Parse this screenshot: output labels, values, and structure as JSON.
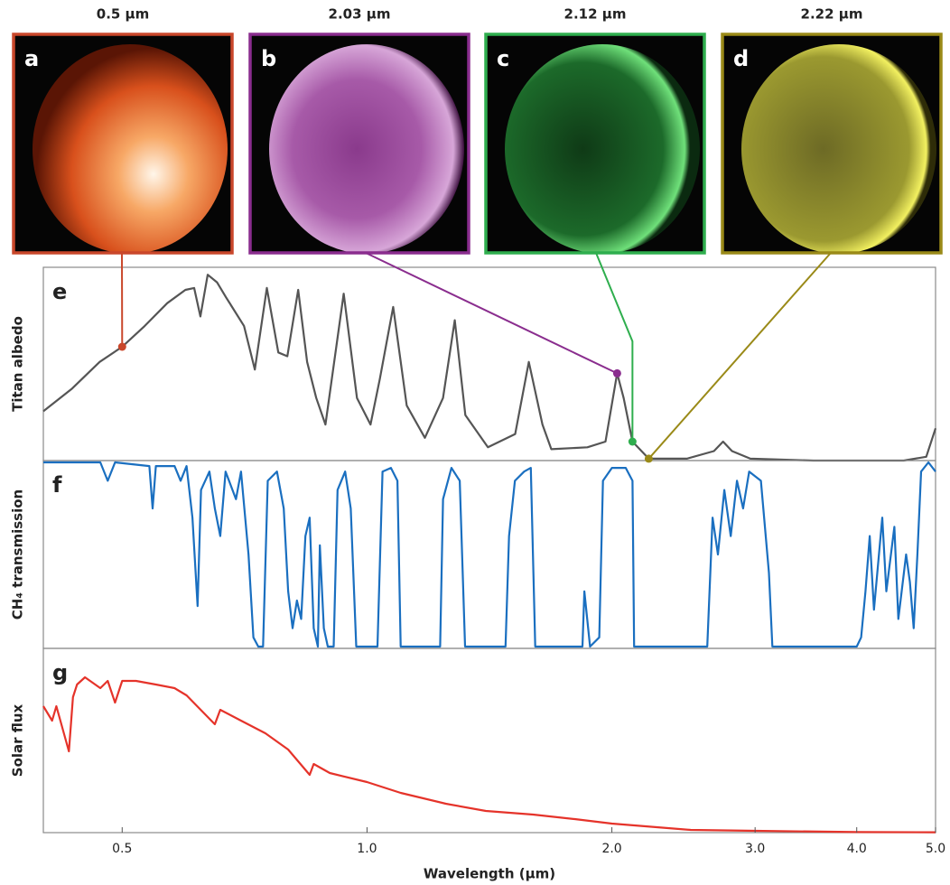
{
  "panels": [
    {
      "letter": "a",
      "label": "0.5 µm",
      "wavelength": 0.5,
      "albedo": 0.6,
      "color": "#c9472b"
    },
    {
      "letter": "b",
      "label": "2.03 µm",
      "wavelength": 2.03,
      "albedo": 0.46,
      "color": "#8a2d8e"
    },
    {
      "letter": "c",
      "label": "2.12 µm",
      "wavelength": 2.12,
      "albedo": 0.1,
      "color": "#2fae4e"
    },
    {
      "letter": "d",
      "label": "2.22 µm",
      "wavelength": 2.22,
      "albedo": 0.01,
      "color": "#9a8a18"
    }
  ],
  "chart_data": [
    {
      "type": "line",
      "panel_label": "e",
      "ylabel": "Titan albedo",
      "log_x": true,
      "xlim": [
        0.4,
        5
      ],
      "ylim": [
        0,
        1
      ],
      "color": "#555555",
      "x": [
        0.4,
        0.434,
        0.469,
        0.5,
        0.533,
        0.568,
        0.598,
        0.613,
        0.624,
        0.637,
        0.654,
        0.671,
        0.706,
        0.728,
        0.753,
        0.778,
        0.798,
        0.823,
        0.844,
        0.866,
        0.889,
        0.936,
        0.972,
        1.01,
        1.037,
        1.077,
        1.119,
        1.178,
        1.24,
        1.282,
        1.321,
        1.408,
        1.521,
        1.581,
        1.643,
        1.685,
        1.866,
        1.964,
        2.03,
        2.068,
        2.12,
        2.22,
        2.473,
        2.67,
        2.74,
        2.81,
        2.96,
        3.54,
        4.57,
        4.87,
        5
      ],
      "values": [
        0.26,
        0.38,
        0.52,
        0.6,
        0.71,
        0.83,
        0.9,
        0.91,
        0.76,
        0.98,
        0.94,
        0.86,
        0.71,
        0.48,
        0.91,
        0.57,
        0.55,
        0.9,
        0.52,
        0.33,
        0.19,
        0.88,
        0.33,
        0.19,
        0.43,
        0.81,
        0.29,
        0.12,
        0.33,
        0.74,
        0.24,
        0.07,
        0.14,
        0.52,
        0.19,
        0.06,
        0.07,
        0.1,
        0.46,
        0.33,
        0.1,
        0.01,
        0.01,
        0.05,
        0.1,
        0.05,
        0.01,
        0,
        0,
        0.02,
        0.17
      ]
    },
    {
      "type": "line",
      "panel_label": "f",
      "ylabel": "CH₄ transmission",
      "log_x": true,
      "xlim": [
        0.4,
        5
      ],
      "ylim": [
        0,
        1
      ],
      "color": "#1a6fc0",
      "x": [
        0.4,
        0.47,
        0.48,
        0.49,
        0.54,
        0.545,
        0.55,
        0.58,
        0.59,
        0.6,
        0.61,
        0.619,
        0.625,
        0.64,
        0.65,
        0.66,
        0.67,
        0.69,
        0.7,
        0.715,
        0.725,
        0.735,
        0.745,
        0.755,
        0.775,
        0.79,
        0.8,
        0.81,
        0.82,
        0.83,
        0.84,
        0.85,
        0.86,
        0.87,
        0.875,
        0.885,
        0.895,
        0.91,
        0.92,
        0.94,
        0.955,
        0.97,
        1.03,
        1.045,
        1.07,
        1.09,
        1.1,
        1.23,
        1.24,
        1.27,
        1.3,
        1.32,
        1.48,
        1.495,
        1.52,
        1.56,
        1.59,
        1.61,
        1.84,
        1.85,
        1.87,
        1.88,
        1.93,
        1.95,
        2.0,
        2.08,
        2.12,
        2.13,
        2.62,
        2.66,
        2.7,
        2.75,
        2.8,
        2.85,
        2.9,
        2.95,
        3.05,
        3.12,
        3.15,
        4.0,
        4.05,
        4.1,
        4.15,
        4.2,
        4.3,
        4.35,
        4.45,
        4.5,
        4.6,
        4.65,
        4.7,
        4.75,
        4.8,
        4.9,
        5
      ],
      "values": [
        1,
        1,
        0.9,
        1,
        0.98,
        0.75,
        0.98,
        0.98,
        0.9,
        0.98,
        0.7,
        0.22,
        0.85,
        0.95,
        0.75,
        0.6,
        0.95,
        0.8,
        0.95,
        0.5,
        0.05,
        0,
        0,
        0.9,
        0.95,
        0.75,
        0.3,
        0.1,
        0.25,
        0.15,
        0.6,
        0.7,
        0.1,
        0,
        0.55,
        0.1,
        0,
        0,
        0.85,
        0.95,
        0.75,
        0,
        0,
        0.95,
        0.97,
        0.9,
        0,
        0,
        0.8,
        0.97,
        0.9,
        0,
        0,
        0.6,
        0.9,
        0.95,
        0.97,
        0,
        0,
        0.3,
        0.1,
        0,
        0.05,
        0.9,
        0.97,
        0.97,
        0.9,
        0,
        0,
        0.7,
        0.5,
        0.85,
        0.6,
        0.9,
        0.75,
        0.95,
        0.9,
        0.4,
        0,
        0,
        0.05,
        0.3,
        0.6,
        0.2,
        0.7,
        0.3,
        0.65,
        0.15,
        0.5,
        0.35,
        0.1,
        0.5,
        0.95,
        1,
        0.95
      ]
    },
    {
      "type": "line",
      "panel_label": "g",
      "ylabel": "Solar flux",
      "log_x": true,
      "xlim": [
        0.4,
        5
      ],
      "ylim": [
        0,
        1
      ],
      "color": "#e5332a",
      "xlabel": "Wavelength (µm)",
      "xticks": [
        0.5,
        {
          "value": 1,
          "label": "1.0"
        },
        {
          "value": 2,
          "label": "2.0"
        },
        {
          "value": 3,
          "label": "3.0"
        },
        {
          "value": 4,
          "label": "4.0"
        },
        {
          "value": 5,
          "label": "5.0"
        }
      ],
      "x": [
        0.4,
        0.41,
        0.415,
        0.43,
        0.435,
        0.44,
        0.45,
        0.47,
        0.48,
        0.49,
        0.5,
        0.52,
        0.55,
        0.58,
        0.6,
        0.65,
        0.66,
        0.7,
        0.75,
        0.8,
        0.85,
        0.86,
        0.9,
        1,
        1.1,
        1.25,
        1.4,
        1.6,
        1.8,
        2,
        2.5,
        3,
        4,
        5
      ],
      "values": [
        0.7,
        0.62,
        0.7,
        0.45,
        0.75,
        0.82,
        0.86,
        0.8,
        0.84,
        0.72,
        0.84,
        0.84,
        0.82,
        0.8,
        0.76,
        0.6,
        0.68,
        0.62,
        0.55,
        0.46,
        0.32,
        0.38,
        0.33,
        0.28,
        0.22,
        0.16,
        0.12,
        0.1,
        0.075,
        0.05,
        0.015,
        0.01,
        0.003,
        0.002
      ]
    }
  ]
}
